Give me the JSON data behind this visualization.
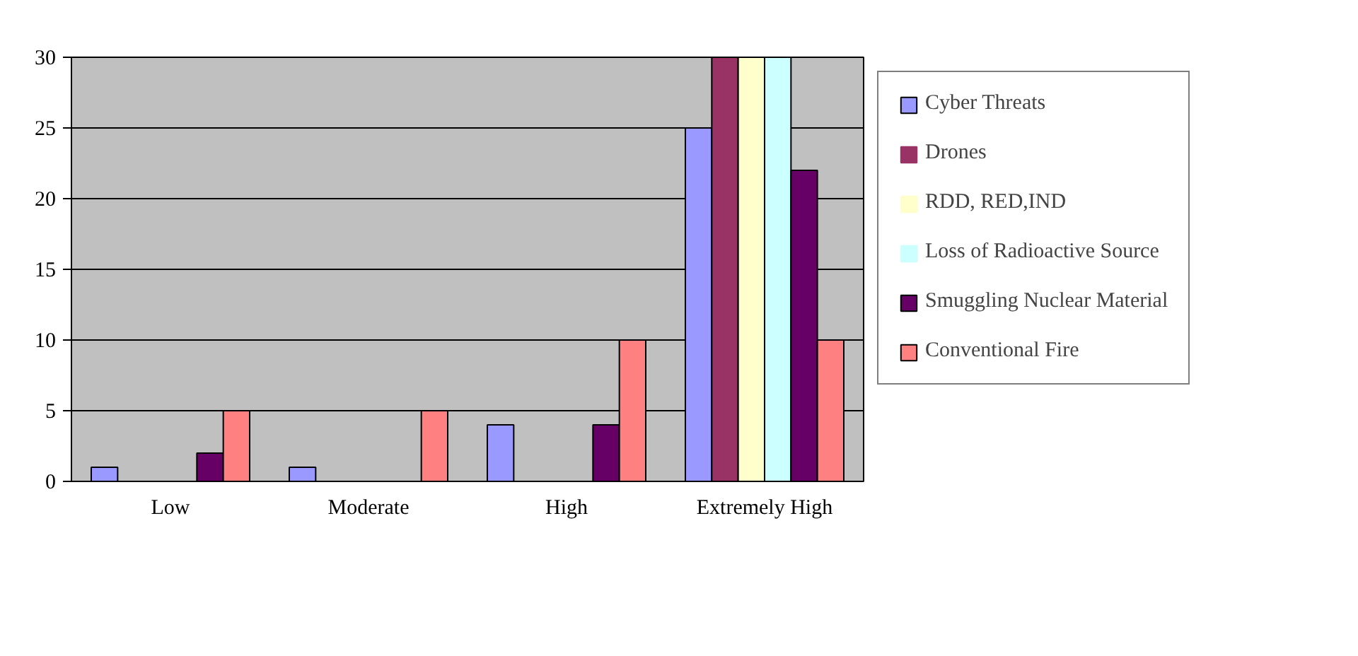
{
  "chart_data": {
    "type": "bar",
    "categories": [
      "Low",
      "Moderate",
      "High",
      "Extremely High"
    ],
    "series": [
      {
        "name": "Cyber Threats",
        "color": "#9999ff",
        "values": [
          1,
          1,
          4,
          25
        ]
      },
      {
        "name": "Drones",
        "color": "#993366",
        "values": [
          0,
          0,
          0,
          30
        ]
      },
      {
        "name": "RDD, RED,IND",
        "color": "#ffffcc",
        "values": [
          0,
          0,
          0,
          30
        ]
      },
      {
        "name": "Loss of Radioactive Source",
        "color": "#ccffff",
        "values": [
          0,
          0,
          0,
          30
        ]
      },
      {
        "name": "Smuggling Nuclear Material",
        "color": "#660066",
        "values": [
          2,
          0,
          4,
          22
        ]
      },
      {
        "name": "Conventional Fire",
        "color": "#ff8080",
        "values": [
          5,
          5,
          10,
          10
        ]
      }
    ],
    "ylim": [
      0,
      30
    ],
    "yticks": [
      0,
      5,
      10,
      15,
      20,
      25,
      30
    ],
    "grid": "y",
    "legend": "right"
  }
}
